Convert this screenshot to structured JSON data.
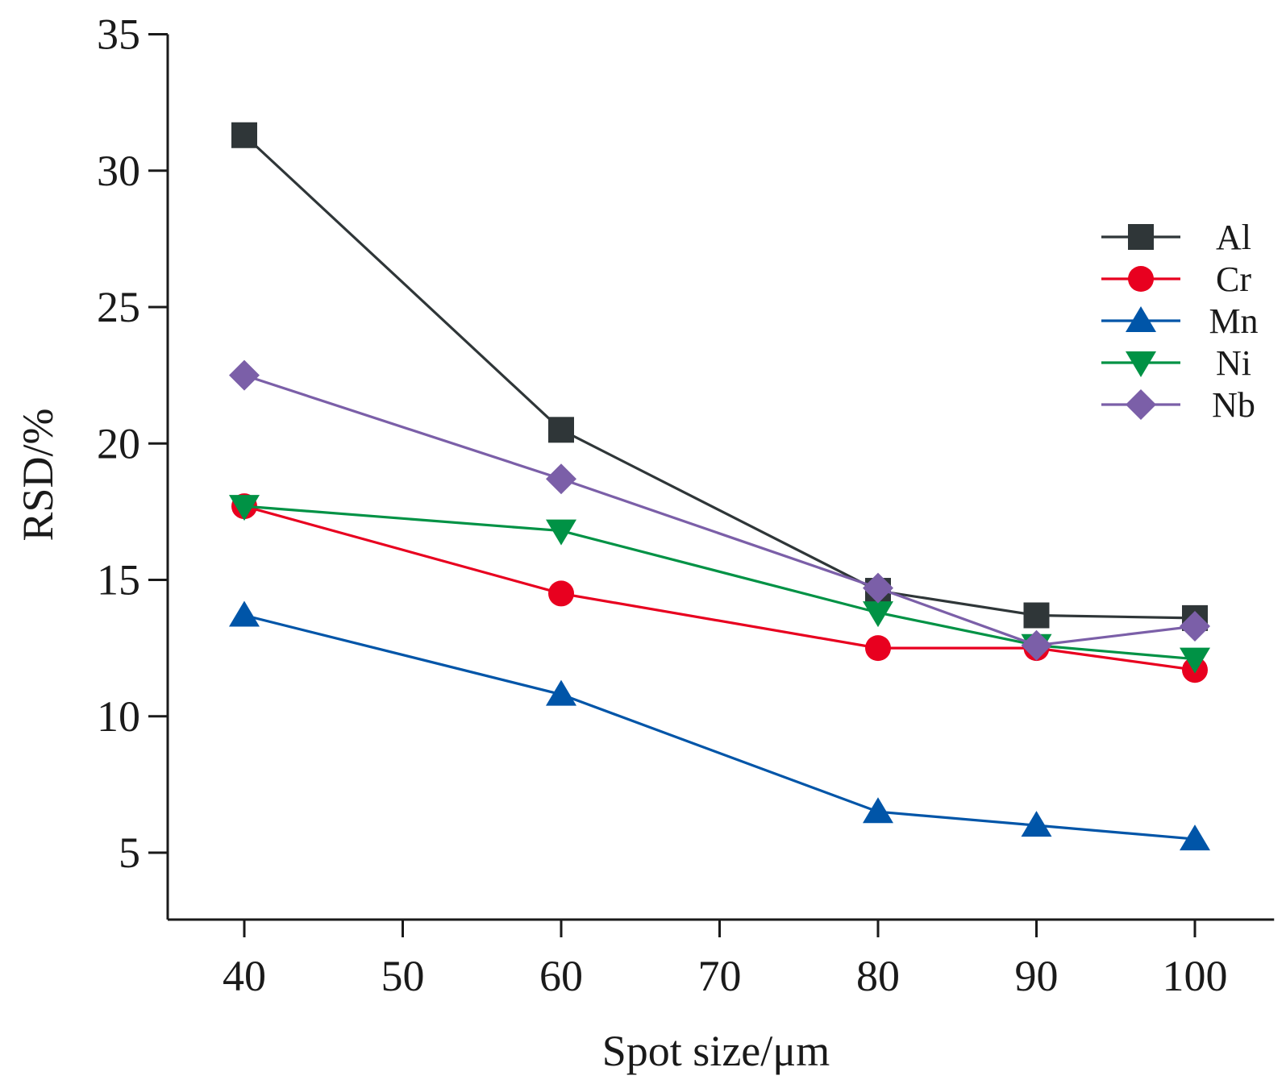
{
  "chart_data": {
    "type": "line",
    "xlabel": "Spot size/μm",
    "ylabel": "RSD/%",
    "xlim": [
      35,
      105
    ],
    "ylim": [
      2.5,
      35
    ],
    "x_ticks": [
      40,
      50,
      60,
      70,
      80,
      90,
      100
    ],
    "y_ticks": [
      5,
      10,
      15,
      20,
      25,
      30,
      35
    ],
    "x_ticks_text": [
      "40",
      "50",
      "60",
      "70",
      "80",
      "90",
      "100"
    ],
    "y_ticks_text": [
      "5",
      "10",
      "15",
      "20",
      "25",
      "30",
      "35"
    ],
    "x": [
      40,
      60,
      80,
      90,
      100
    ],
    "legend_position": "upper-right",
    "series": [
      {
        "name": "Al",
        "values": [
          31.3,
          20.5,
          14.6,
          13.7,
          13.6
        ],
        "color": "#2f3638",
        "marker": "square"
      },
      {
        "name": "Cr",
        "values": [
          17.7,
          14.5,
          12.5,
          12.5,
          11.7
        ],
        "color": "#e8001f",
        "marker": "circle"
      },
      {
        "name": "Mn",
        "values": [
          13.7,
          10.8,
          6.5,
          6.0,
          5.5
        ],
        "color": "#0055a8",
        "marker": "triangle-up"
      },
      {
        "name": "Ni",
        "values": [
          17.7,
          16.8,
          13.8,
          12.6,
          12.1
        ],
        "color": "#009245",
        "marker": "triangle-down"
      },
      {
        "name": "Nb",
        "values": [
          22.5,
          18.7,
          14.7,
          12.6,
          13.3
        ],
        "color": "#7b5fa8",
        "marker": "diamond"
      }
    ]
  }
}
